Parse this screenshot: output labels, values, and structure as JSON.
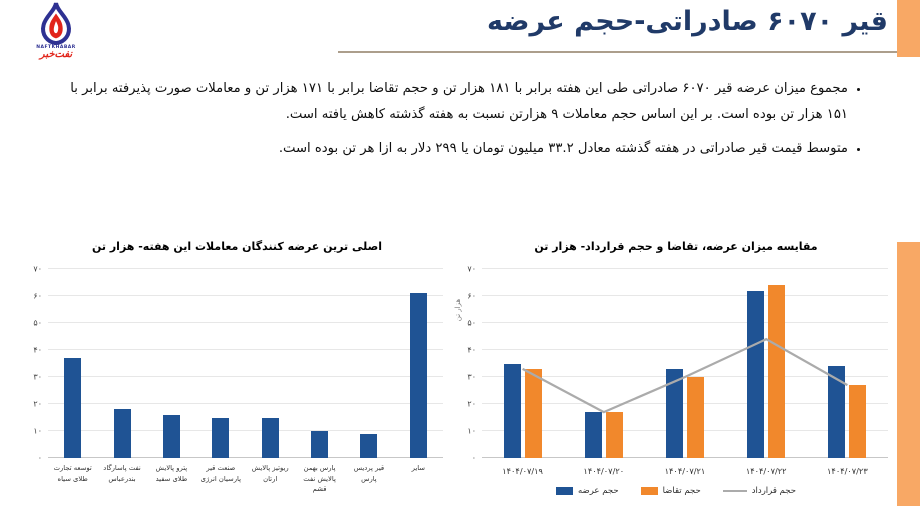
{
  "header": {
    "title": "قیر ۶۰۷۰ صادراتی-حجم عرضه",
    "logo_en": "NAFTKHABAR",
    "logo_fa": "نفت‌خبر"
  },
  "bullets": [
    "مجموع میزان عرضه قیر ۶۰۷۰ صادراتی طی این هفته برابر با ۱۸۱ هزار تن و حجم تقاضا برابر با ۱۷۱ هزار تن و معاملات صورت پذیرفته برابر با ۱۵۱ هزار تن بوده است. بر این اساس حجم معاملات ۹ هزارتن نسبت به هفته گذشته کاهش یافته است.",
    "متوسط قیمت قیر صادراتی در هفته گذشته معادل ۳۳.۲ میلیون تومان یا ۲۹۹ دلار به ازا هر تن بوده است."
  ],
  "colors": {
    "accent_orange": "#F8A865",
    "title_navy": "#203A68",
    "bar_blue": "#1F5394",
    "bar_orange": "#F1882C",
    "line_gray": "#ABABAB"
  },
  "chart_data": [
    {
      "type": "bar",
      "title": "اصلی ترین عرضه کنندگان معاملات این هفته- هزار تن",
      "ylabel": "",
      "ylim": [
        0,
        70
      ],
      "grid": true,
      "bar_color": "#1F5394",
      "yticks": [
        {
          "v": 0,
          "label": "۰"
        },
        {
          "v": 10,
          "label": "۱۰"
        },
        {
          "v": 20,
          "label": "۲۰"
        },
        {
          "v": 30,
          "label": "۳۰"
        },
        {
          "v": 40,
          "label": "۴۰"
        },
        {
          "v": 50,
          "label": "۵۰"
        },
        {
          "v": 60,
          "label": "۶۰"
        },
        {
          "v": 70,
          "label": "۷۰"
        }
      ],
      "categories": [
        [
          "توسعه تجارت",
          "طلای سیاه"
        ],
        [
          "نفت پاسارگاد",
          "بندرعباس"
        ],
        [
          "پترو پالایش",
          "طلای سفید"
        ],
        [
          "صنعت قیر",
          "پارسیان انرژی"
        ],
        [
          "ریوتیز پالایش",
          "ارتان"
        ],
        [
          "پارس بهمن",
          "پالایش نفت",
          "قشم"
        ],
        [
          "قیر پردیس",
          "پارس"
        ],
        [
          "سایر"
        ]
      ],
      "values": [
        37,
        18,
        16,
        15,
        15,
        10,
        9,
        61
      ]
    },
    {
      "type": "grouped-bar-line",
      "title": "مقایسه میزان عرضه، تقاضا و حجم قرارداد-  هزار تن",
      "ylabel": "هزار تن",
      "ylim": [
        0,
        70
      ],
      "grid": true,
      "legend_position": "bottom",
      "yticks": [
        {
          "v": 0,
          "label": "۰"
        },
        {
          "v": 10,
          "label": "۱۰"
        },
        {
          "v": 20,
          "label": "۲۰"
        },
        {
          "v": 30,
          "label": "۳۰"
        },
        {
          "v": 40,
          "label": "۴۰"
        },
        {
          "v": 50,
          "label": "۵۰"
        },
        {
          "v": 60,
          "label": "۶۰"
        },
        {
          "v": 70,
          "label": "۷۰"
        }
      ],
      "categories": [
        "۱۴۰۴/۰۷/۱۹",
        "۱۴۰۴/۰۷/۲۰",
        "۱۴۰۴/۰۷/۲۱",
        "۱۴۰۴/۰۷/۲۲",
        "۱۴۰۴/۰۷/۲۳"
      ],
      "series": [
        {
          "name": "حجم عرضه",
          "type": "bar",
          "color": "#1F5394",
          "values": [
            35,
            17,
            33,
            62,
            34
          ]
        },
        {
          "name": "حجم تقاضا",
          "type": "bar",
          "color": "#F1882C",
          "values": [
            33,
            17,
            30,
            64,
            27
          ]
        },
        {
          "name": "حجم قرارداد",
          "type": "line",
          "color": "#ABABAB",
          "values": [
            33,
            17,
            30,
            44,
            27
          ]
        }
      ]
    }
  ]
}
